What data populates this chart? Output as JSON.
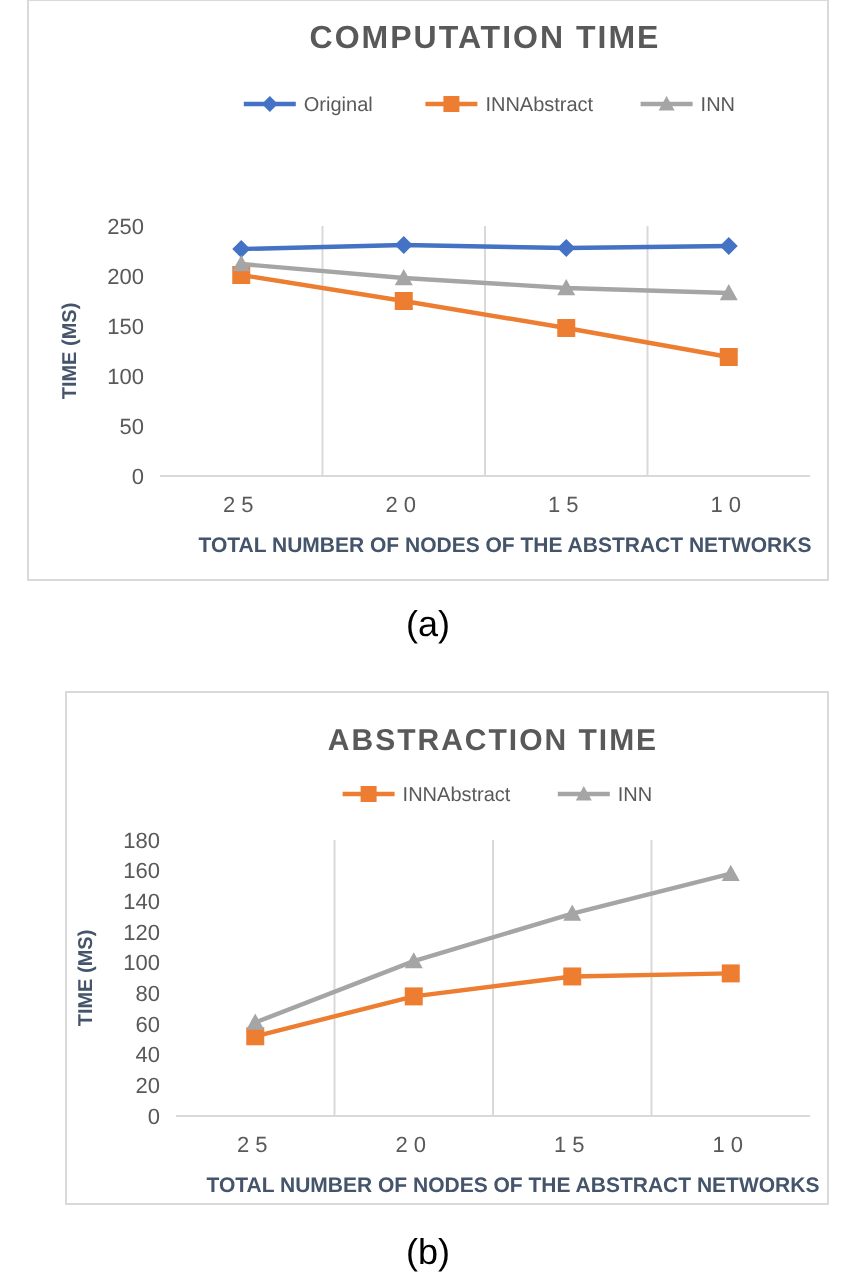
{
  "chart_data": [
    {
      "type": "line",
      "title": "COMPUTATION TIME",
      "xlabel": "TOTAL NUMBER OF NODES OF THE ABSTRACT NETWORKS",
      "ylabel": "TIME (MS)",
      "categories": [
        "25",
        "20",
        "15",
        "10"
      ],
      "series": [
        {
          "name": "Original",
          "color": "#4472c4",
          "marker": "diamond",
          "values": [
            227,
            231,
            228,
            230
          ]
        },
        {
          "name": "INNAbstract",
          "color": "#ed7d31",
          "marker": "square",
          "values": [
            201,
            175,
            148,
            119
          ]
        },
        {
          "name": "INN",
          "color": "#a5a5a5",
          "marker": "triangle",
          "values": [
            212,
            198,
            188,
            183
          ]
        }
      ],
      "ylim": [
        0,
        250
      ],
      "yticks": [
        0,
        50,
        100,
        150,
        200,
        250
      ],
      "grid": "x",
      "legend": "top",
      "annotations": [
        "(a)"
      ]
    },
    {
      "type": "line",
      "title": "ABSTRACTION TIME",
      "xlabel": "TOTAL NUMBER OF NODES OF THE ABSTRACT NETWORKS",
      "ylabel": "TIME (MS)",
      "categories": [
        "25",
        "20",
        "15",
        "10"
      ],
      "series": [
        {
          "name": "INNAbstract",
          "color": "#ed7d31",
          "marker": "square",
          "values": [
            52,
            78,
            91,
            93
          ]
        },
        {
          "name": "INN",
          "color": "#a5a5a5",
          "marker": "triangle",
          "values": [
            61,
            101,
            132,
            158
          ]
        }
      ],
      "ylim": [
        0,
        180
      ],
      "yticks": [
        0,
        20,
        40,
        60,
        80,
        100,
        120,
        140,
        160,
        180
      ],
      "grid": "x",
      "legend": "top",
      "annotations": [
        "(b)"
      ]
    }
  ]
}
